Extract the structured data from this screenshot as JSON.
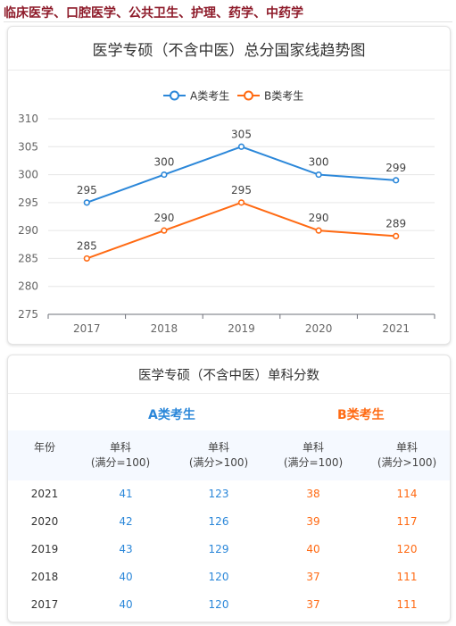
{
  "page": {
    "header_title": "临床医学、口腔医学、公共卫生、护理、药学、中药学"
  },
  "chart_card": {
    "title": "医学专硕（不含中医）总分国家线趋势图"
  },
  "chart_data": {
    "type": "line",
    "title": "医学专硕（不含中医）总分国家线趋势图",
    "categories": [
      "2017",
      "2018",
      "2019",
      "2020",
      "2021"
    ],
    "series": [
      {
        "name": "A类考生",
        "color": "#2b87d9",
        "values": [
          295,
          300,
          305,
          300,
          299
        ]
      },
      {
        "name": "B类考生",
        "color": "#ff6a13",
        "values": [
          285,
          290,
          295,
          290,
          289
        ]
      }
    ],
    "ylim": [
      275,
      310
    ],
    "yticks": [
      275,
      280,
      285,
      290,
      295,
      300,
      305,
      310
    ],
    "grid": true,
    "legend": "top-center"
  },
  "table_card": {
    "title": "医学专硕（不含中医）单科分数",
    "group_a": "A类考生",
    "group_b": "B类考生",
    "headers": {
      "year": "年份",
      "col1_line1": "单科",
      "col1_line2": "(满分=100)",
      "col2_line1": "单科",
      "col2_line2": "(满分>100)",
      "col3_line1": "单科",
      "col3_line2": "(满分=100)",
      "col4_line1": "单科",
      "col4_line2": "(满分>100)"
    },
    "rows": [
      {
        "year": "2021",
        "a100": "41",
        "a_gt": "123",
        "b100": "38",
        "b_gt": "114"
      },
      {
        "year": "2020",
        "a100": "42",
        "a_gt": "126",
        "b100": "39",
        "b_gt": "117"
      },
      {
        "year": "2019",
        "a100": "43",
        "a_gt": "129",
        "b100": "40",
        "b_gt": "120"
      },
      {
        "year": "2018",
        "a100": "40",
        "a_gt": "120",
        "b100": "37",
        "b_gt": "111"
      },
      {
        "year": "2017",
        "a100": "40",
        "a_gt": "120",
        "b100": "37",
        "b_gt": "111"
      }
    ]
  }
}
